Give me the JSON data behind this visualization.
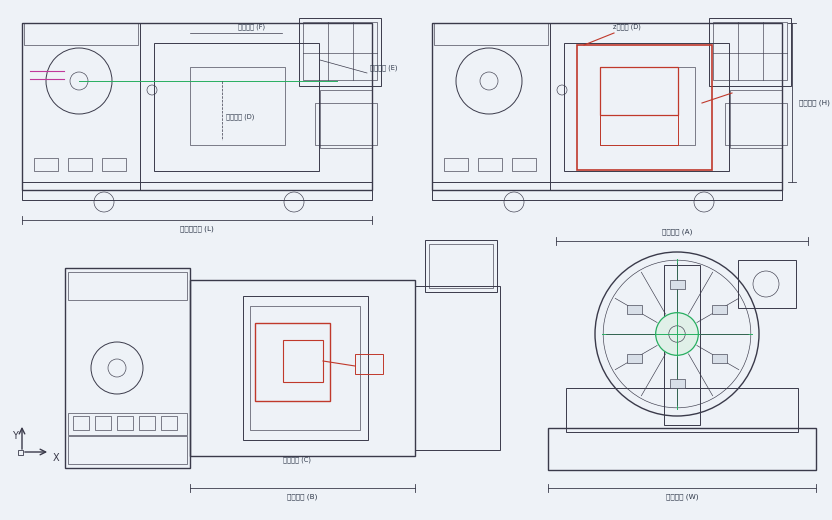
{
  "bg_color": "#eef2f7",
  "line_color": "#3a3a4a",
  "red_color": "#c0392b",
  "green_color": "#27ae60",
  "magenta_color": "#c0399b",
  "labels": {
    "F": "方拖尺寸 (F)",
    "E": "刀台尺寸 (E)",
    "D_rot": "回转半径 (D)",
    "D_z": "z轴行程 (D)",
    "H": "设备高度 (H)",
    "L": "机床总长度 (L)",
    "A": "卡盘直径 (A)",
    "W": "设备宽度 (W)",
    "B": "工件长度 (B)",
    "C": "工轴行程 (C)"
  }
}
